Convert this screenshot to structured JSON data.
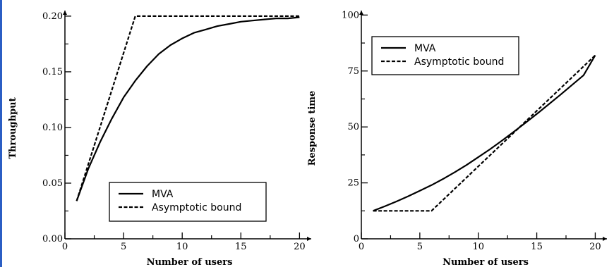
{
  "chart_data": [
    {
      "type": "line",
      "xlabel": "Number of users",
      "ylabel": "Throughput",
      "xlim": [
        0,
        21
      ],
      "ylim": [
        0,
        0.205
      ],
      "xticks": [
        0,
        5,
        10,
        15,
        20
      ],
      "yticks": [
        0.0,
        0.05,
        0.1,
        0.15,
        0.2
      ],
      "ytick_labels": [
        "0.00",
        "0.05",
        "0.10",
        "0.15",
        "0.20"
      ],
      "legend_position": "bottom-right",
      "series": [
        {
          "name": "MVA",
          "style": "solid",
          "x": [
            1,
            2,
            3,
            4,
            5,
            6,
            7,
            8,
            9,
            10,
            11,
            12,
            13,
            14,
            15,
            16,
            17,
            18,
            19,
            20
          ],
          "y": [
            0.034,
            0.063,
            0.087,
            0.108,
            0.127,
            0.142,
            0.155,
            0.166,
            0.174,
            0.18,
            0.185,
            0.188,
            0.191,
            0.193,
            0.195,
            0.196,
            0.197,
            0.198,
            0.198,
            0.199
          ]
        },
        {
          "name": "Asymptotic bound",
          "style": "dashed",
          "x": [
            1,
            6,
            20
          ],
          "y": [
            0.034,
            0.2,
            0.2
          ]
        }
      ]
    },
    {
      "type": "line",
      "xlabel": "Number of users",
      "ylabel": "Response time",
      "xlim": [
        0,
        21
      ],
      "ylim": [
        0,
        102
      ],
      "xticks": [
        0,
        5,
        10,
        15,
        20
      ],
      "yticks": [
        0,
        25,
        50,
        75,
        100
      ],
      "ytick_labels": [
        "0",
        "25",
        "50",
        "75",
        "100"
      ],
      "legend_position": "top-left",
      "series": [
        {
          "name": "MVA",
          "style": "solid",
          "x": [
            1,
            2,
            3,
            4,
            5,
            6,
            7,
            8,
            9,
            10,
            11,
            12,
            13,
            14,
            15,
            16,
            17,
            18,
            19,
            20
          ],
          "y": [
            12.5,
            14.5,
            16.7,
            19.0,
            21.5,
            24.0,
            26.8,
            29.8,
            33.0,
            36.5,
            40.0,
            43.8,
            47.7,
            51.7,
            55.8,
            60.0,
            64.3,
            68.7,
            73.1,
            82.0
          ]
        },
        {
          "name": "Asymptotic bound",
          "style": "dashed",
          "x": [
            1,
            6,
            20
          ],
          "y": [
            12.5,
            12.5,
            82.0
          ]
        }
      ]
    }
  ]
}
